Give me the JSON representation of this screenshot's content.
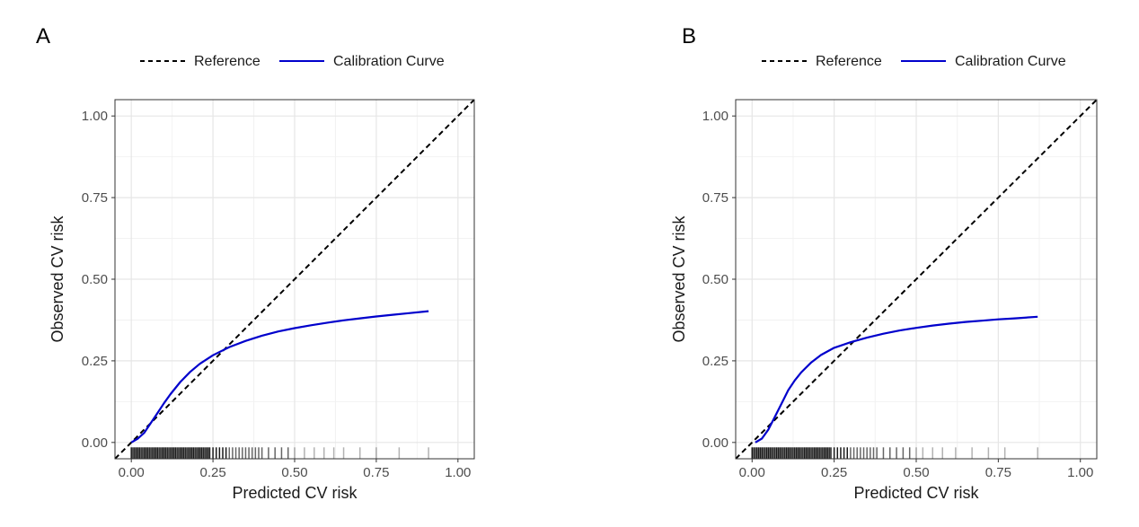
{
  "chart_data": [
    {
      "type": "line",
      "panel_label": "A",
      "legend": {
        "position": "top",
        "entries": [
          {
            "name": "Reference",
            "style": "dashed",
            "color": "#000000"
          },
          {
            "name": "Calibration Curve",
            "style": "solid",
            "color": "#0000cc"
          }
        ]
      },
      "xlabel": "Predicted CV risk",
      "ylabel": "Observed CV risk",
      "xlim": [
        -0.05,
        1.05
      ],
      "ylim": [
        -0.05,
        1.05
      ],
      "xticks": [
        0.0,
        0.25,
        0.5,
        0.75,
        1.0
      ],
      "xtick_labels": [
        "0.00",
        "0.25",
        "0.50",
        "0.75",
        "1.00"
      ],
      "yticks": [
        0.0,
        0.25,
        0.5,
        0.75,
        1.0
      ],
      "ytick_labels": [
        "0.00",
        "0.25",
        "0.50",
        "0.75",
        "1.00"
      ],
      "grid": true,
      "series": [
        {
          "name": "Reference",
          "x": [
            -0.05,
            1.05
          ],
          "y": [
            -0.05,
            1.05
          ]
        },
        {
          "name": "Calibration Curve",
          "x": [
            0.0,
            0.02,
            0.04,
            0.06,
            0.08,
            0.1,
            0.12,
            0.15,
            0.18,
            0.21,
            0.25,
            0.3,
            0.35,
            0.4,
            0.45,
            0.5,
            0.55,
            0.6,
            0.65,
            0.7,
            0.75,
            0.8,
            0.85,
            0.91
          ],
          "y": [
            0.0,
            0.012,
            0.03,
            0.06,
            0.09,
            0.12,
            0.148,
            0.185,
            0.216,
            0.241,
            0.267,
            0.292,
            0.311,
            0.327,
            0.34,
            0.35,
            0.359,
            0.367,
            0.374,
            0.38,
            0.386,
            0.391,
            0.396,
            0.402
          ]
        }
      ],
      "rug": [
        0.0,
        0.005,
        0.01,
        0.015,
        0.02,
        0.025,
        0.03,
        0.035,
        0.04,
        0.045,
        0.05,
        0.055,
        0.06,
        0.065,
        0.07,
        0.075,
        0.08,
        0.085,
        0.09,
        0.095,
        0.1,
        0.105,
        0.11,
        0.115,
        0.12,
        0.125,
        0.13,
        0.135,
        0.14,
        0.145,
        0.15,
        0.155,
        0.16,
        0.165,
        0.17,
        0.175,
        0.18,
        0.185,
        0.19,
        0.195,
        0.2,
        0.205,
        0.21,
        0.215,
        0.22,
        0.225,
        0.23,
        0.235,
        0.24,
        0.25,
        0.26,
        0.27,
        0.28,
        0.29,
        0.3,
        0.31,
        0.32,
        0.33,
        0.34,
        0.35,
        0.36,
        0.37,
        0.38,
        0.39,
        0.4,
        0.42,
        0.44,
        0.46,
        0.48,
        0.5,
        0.53,
        0.56,
        0.59,
        0.62,
        0.65,
        0.7,
        0.75,
        0.82,
        0.91
      ]
    },
    {
      "type": "line",
      "panel_label": "B",
      "legend": {
        "position": "top",
        "entries": [
          {
            "name": "Reference",
            "style": "dashed",
            "color": "#000000"
          },
          {
            "name": "Calibration Curve",
            "style": "solid",
            "color": "#0000cc"
          }
        ]
      },
      "xlabel": "Predicted CV risk",
      "ylabel": "Observed CV risk",
      "xlim": [
        -0.05,
        1.05
      ],
      "ylim": [
        -0.05,
        1.05
      ],
      "xticks": [
        0.0,
        0.25,
        0.5,
        0.75,
        1.0
      ],
      "xtick_labels": [
        "0.00",
        "0.25",
        "0.50",
        "0.75",
        "1.00"
      ],
      "yticks": [
        0.0,
        0.25,
        0.5,
        0.75,
        1.0
      ],
      "ytick_labels": [
        "0.00",
        "0.25",
        "0.50",
        "0.75",
        "1.00"
      ],
      "grid": true,
      "series": [
        {
          "name": "Reference",
          "x": [
            -0.05,
            1.05
          ],
          "y": [
            -0.05,
            1.05
          ]
        },
        {
          "name": "Calibration Curve",
          "x": [
            0.01,
            0.03,
            0.05,
            0.07,
            0.09,
            0.11,
            0.13,
            0.15,
            0.18,
            0.21,
            0.25,
            0.3,
            0.35,
            0.4,
            0.45,
            0.5,
            0.55,
            0.6,
            0.65,
            0.7,
            0.75,
            0.8,
            0.87
          ],
          "y": [
            0.0,
            0.012,
            0.04,
            0.08,
            0.12,
            0.16,
            0.19,
            0.215,
            0.245,
            0.268,
            0.29,
            0.307,
            0.321,
            0.333,
            0.343,
            0.351,
            0.358,
            0.364,
            0.369,
            0.373,
            0.377,
            0.38,
            0.385
          ]
        }
      ],
      "rug": [
        0.0,
        0.005,
        0.01,
        0.015,
        0.02,
        0.025,
        0.03,
        0.035,
        0.04,
        0.045,
        0.05,
        0.055,
        0.06,
        0.065,
        0.07,
        0.075,
        0.08,
        0.085,
        0.09,
        0.095,
        0.1,
        0.105,
        0.11,
        0.115,
        0.12,
        0.125,
        0.13,
        0.135,
        0.14,
        0.145,
        0.15,
        0.155,
        0.16,
        0.165,
        0.17,
        0.175,
        0.18,
        0.185,
        0.19,
        0.195,
        0.2,
        0.205,
        0.21,
        0.215,
        0.22,
        0.225,
        0.23,
        0.235,
        0.24,
        0.25,
        0.26,
        0.27,
        0.28,
        0.29,
        0.3,
        0.31,
        0.32,
        0.33,
        0.34,
        0.35,
        0.36,
        0.37,
        0.38,
        0.4,
        0.42,
        0.44,
        0.46,
        0.48,
        0.5,
        0.52,
        0.55,
        0.58,
        0.62,
        0.67,
        0.72,
        0.77,
        0.87
      ]
    }
  ]
}
